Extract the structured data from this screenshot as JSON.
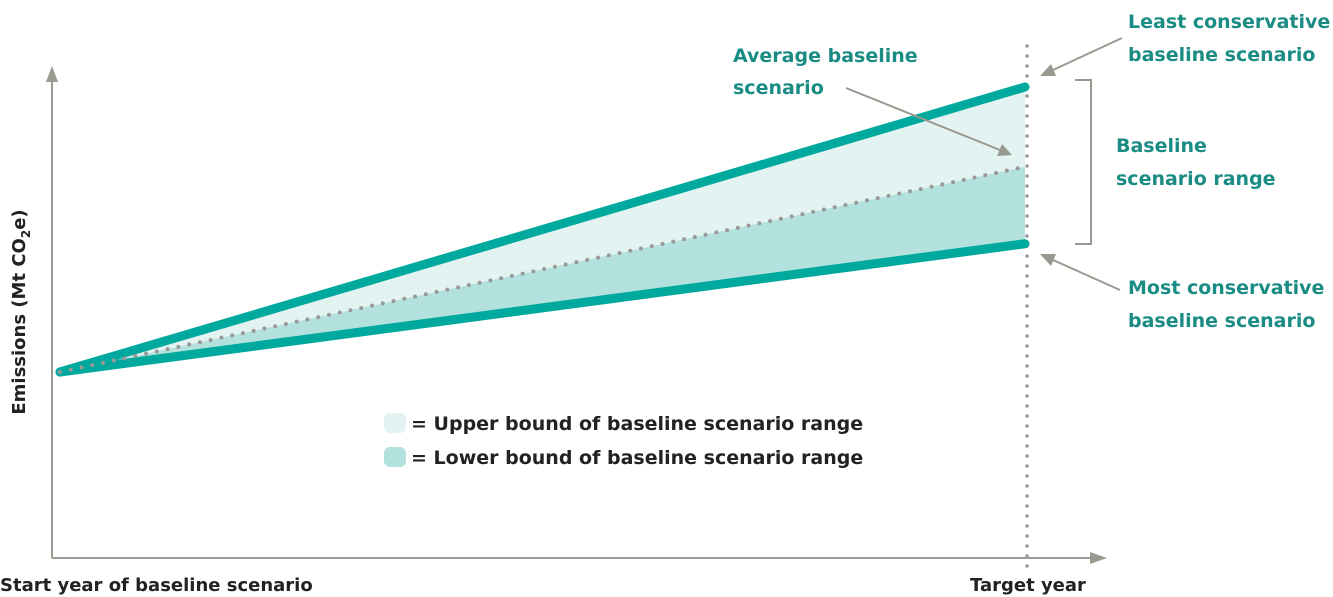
{
  "colors": {
    "scenario_line": "#00a99d",
    "upper_fill": "#e3f3f1",
    "lower_fill": "#b3e1dd",
    "average_dots": "#999999",
    "axis": "#999990",
    "bracket": "#999990",
    "annotation_text": "#1a8c84",
    "axis_text": "#222222",
    "legend_text": "#222222"
  },
  "axes": {
    "y_label_main": "Emissions (Mt CO",
    "y_label_sub": "2",
    "y_label_end": "e)",
    "x_start_label": "Start year of baseline scenario",
    "x_end_label": "Target year"
  },
  "annotations": {
    "average_line1": "Average baseline",
    "average_line2": "scenario",
    "least_line1": "Least conservative",
    "least_line2": "baseline scenario",
    "range_line1": "Baseline",
    "range_line2": "scenario range",
    "most_line1": "Most conservative",
    "most_line2": "baseline scenario"
  },
  "legend": {
    "upper_text": "= Upper bound of baseline scenario range",
    "lower_text": "= Lower bound of baseline scenario range"
  },
  "scenarios": {
    "start_value": 0,
    "least_conservative_end": 1,
    "average_end": 0.72,
    "most_conservative_end": 0.45
  }
}
